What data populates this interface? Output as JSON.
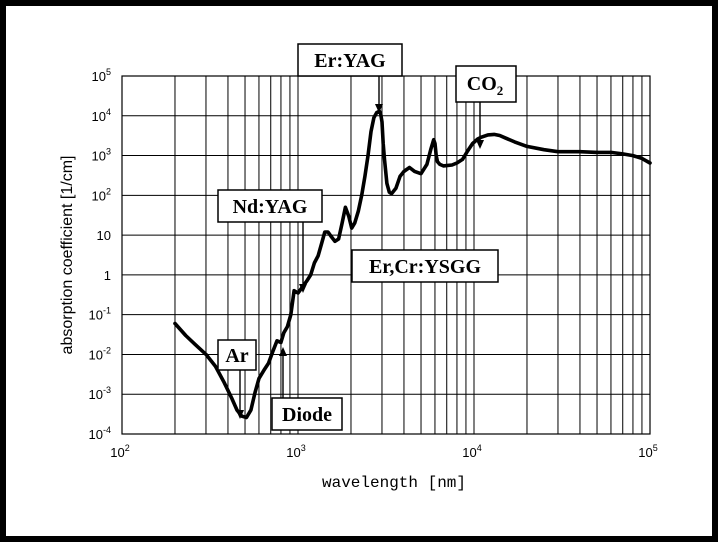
{
  "chart_data": {
    "type": "line",
    "title": "",
    "xlabel": "wavelength [nm]",
    "ylabel": "absorption coefficient [1/cm]",
    "xscale": "log",
    "yscale": "log",
    "xlim": [
      100,
      100000
    ],
    "ylim": [
      0.0001,
      100000
    ],
    "grid": true,
    "x_ticks": [
      {
        "value": 100,
        "base": "10",
        "exp": "2"
      },
      {
        "value": 1000,
        "base": "10",
        "exp": "3"
      },
      {
        "value": 10000,
        "base": "10",
        "exp": "4"
      },
      {
        "value": 100000,
        "base": "10",
        "exp": "5"
      }
    ],
    "y_ticks": [
      {
        "value": 0.0001,
        "base": "10",
        "exp": "-4"
      },
      {
        "value": 0.001,
        "base": "10",
        "exp": "-3"
      },
      {
        "value": 0.01,
        "base": "10",
        "exp": "-2"
      },
      {
        "value": 0.1,
        "base": "10",
        "exp": "-1"
      },
      {
        "value": 1,
        "base": "1",
        "exp": ""
      },
      {
        "value": 10,
        "base": "10",
        "exp": ""
      },
      {
        "value": 100,
        "base": "10",
        "exp": "2"
      },
      {
        "value": 1000,
        "base": "10",
        "exp": "3"
      },
      {
        "value": 10000,
        "base": "10",
        "exp": "4"
      },
      {
        "value": 100000,
        "base": "10",
        "exp": "5"
      }
    ],
    "series": [
      {
        "color": "#000000",
        "x": [
          200,
          230,
          260,
          300,
          340,
          380,
          420,
          450,
          480,
          510,
          540,
          570,
          600,
          640,
          680,
          720,
          760,
          800,
          830,
          870,
          910,
          950,
          1000,
          1060,
          1120,
          1180,
          1240,
          1300,
          1360,
          1420,
          1480,
          1550,
          1620,
          1700,
          1780,
          1860,
          1940,
          2020,
          2100,
          2200,
          2300,
          2400,
          2500,
          2600,
          2700,
          2800,
          2900,
          2950,
          3000,
          3050,
          3100,
          3200,
          3300,
          3400,
          3600,
          3800,
          4000,
          4300,
          4600,
          5000,
          5400,
          5700,
          5900,
          6000,
          6100,
          6200,
          6400,
          6700,
          7000,
          7500,
          8000,
          8600,
          9200,
          9800,
          10500,
          11000,
          12000,
          13000,
          14000,
          15000,
          17000,
          20000,
          25000,
          30000,
          40000,
          50000,
          60000,
          70000,
          80000,
          90000,
          100000
        ],
        "y": [
          0.06,
          0.03,
          0.018,
          0.01,
          0.005,
          0.002,
          0.0008,
          0.0004,
          0.00028,
          0.00026,
          0.0004,
          0.0011,
          0.0025,
          0.004,
          0.006,
          0.012,
          0.022,
          0.02,
          0.035,
          0.05,
          0.1,
          0.4,
          0.35,
          0.5,
          0.7,
          1,
          2,
          3,
          6,
          12,
          12,
          9,
          7,
          8,
          20,
          50,
          30,
          15,
          20,
          40,
          100,
          300,
          1000,
          4000,
          9000,
          12000,
          13000,
          11000,
          7000,
          2000,
          800,
          200,
          120,
          110,
          150,
          300,
          400,
          500,
          400,
          350,
          600,
          1500,
          2500,
          2000,
          1000,
          700,
          600,
          550,
          560,
          580,
          650,
          800,
          1300,
          2000,
          2600,
          2900,
          3300,
          3400,
          3200,
          2800,
          2200,
          1700,
          1400,
          1250,
          1250,
          1200,
          1200,
          1100,
          1000,
          850,
          650
        ]
      }
    ],
    "annotations": [
      {
        "label": "Er:YAG",
        "wavelength": 2940
      },
      {
        "label": "CO",
        "subscript": "2",
        "wavelength": 10600
      },
      {
        "label": "Nd:YAG",
        "wavelength": 1064
      },
      {
        "label": "Er,Cr:YSGG",
        "wavelength": 2790
      },
      {
        "label": "Ar",
        "wavelength": 488
      },
      {
        "label": "Diode",
        "wavelength": 810
      }
    ]
  }
}
